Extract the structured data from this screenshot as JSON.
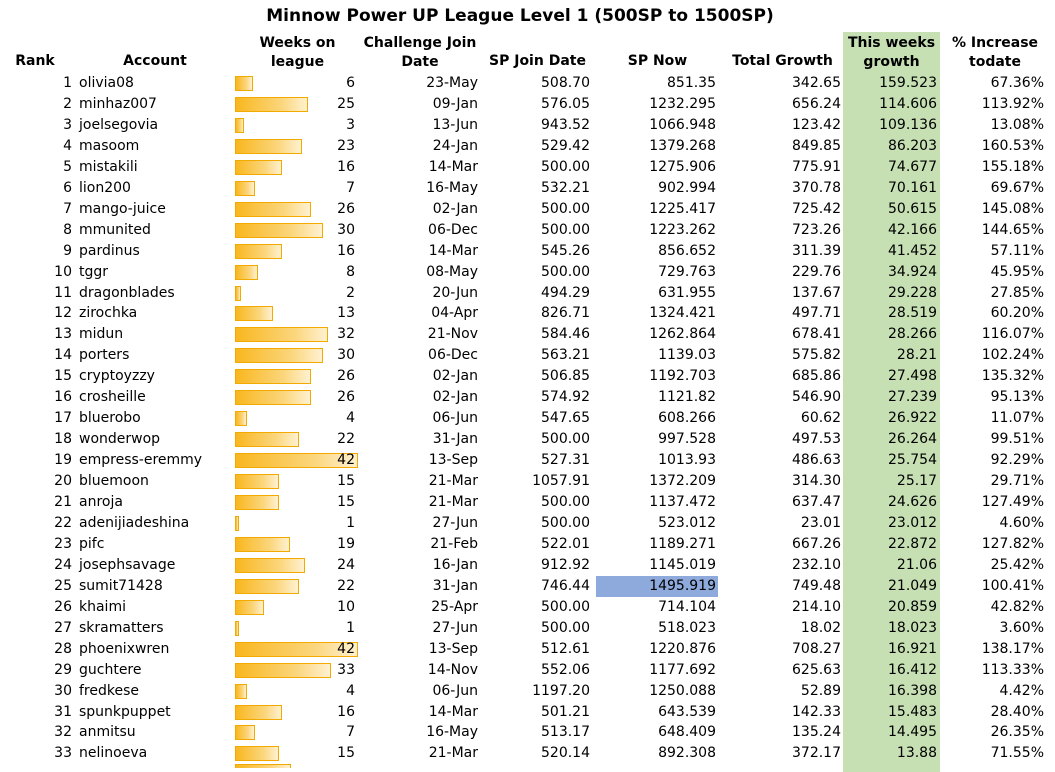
{
  "title": "Minnow Power UP League Level 1 (500SP to 1500SP)",
  "headers": {
    "rank": "Rank",
    "account": "Account",
    "weeks_l1": "Weeks on",
    "weeks_l2": "league",
    "join_l1": "Challenge Join",
    "join_l2": "Date",
    "sp_join": "SP Join Date",
    "sp_now": "SP Now",
    "total_growth": "Total Growth",
    "week_l1": "This weeks",
    "week_l2": "growth",
    "pct_l1": "% Increase",
    "pct_l2": "todate"
  },
  "colors": {
    "bar": "#f9b71f",
    "week_column": "#c6e0b4",
    "highlight": "#8ea9db"
  },
  "rows": [
    {
      "rank": "1",
      "account": "olivia08",
      "weeks": "6",
      "join_date": "23-May",
      "sp_join": "508.70",
      "sp_now": "851.35",
      "total_growth": "342.65",
      "week_growth": "159.523",
      "pct": "67.36%"
    },
    {
      "rank": "2",
      "account": "minhaz007",
      "weeks": "25",
      "join_date": "09-Jan",
      "sp_join": "576.05",
      "sp_now": "1232.295",
      "total_growth": "656.24",
      "week_growth": "114.606",
      "pct": "113.92%"
    },
    {
      "rank": "3",
      "account": "joelsegovia",
      "weeks": "3",
      "join_date": "13-Jun",
      "sp_join": "943.52",
      "sp_now": "1066.948",
      "total_growth": "123.42",
      "week_growth": "109.136",
      "pct": "13.08%"
    },
    {
      "rank": "4",
      "account": "masoom",
      "weeks": "23",
      "join_date": "24-Jan",
      "sp_join": "529.42",
      "sp_now": "1379.268",
      "total_growth": "849.85",
      "week_growth": "86.203",
      "pct": "160.53%"
    },
    {
      "rank": "5",
      "account": "mistakili",
      "weeks": "16",
      "join_date": "14-Mar",
      "sp_join": "500.00",
      "sp_now": "1275.906",
      "total_growth": "775.91",
      "week_growth": "74.677",
      "pct": "155.18%"
    },
    {
      "rank": "6",
      "account": "lion200",
      "weeks": "7",
      "join_date": "16-May",
      "sp_join": "532.21",
      "sp_now": "902.994",
      "total_growth": "370.78",
      "week_growth": "70.161",
      "pct": "69.67%"
    },
    {
      "rank": "7",
      "account": "mango-juice",
      "weeks": "26",
      "join_date": "02-Jan",
      "sp_join": "500.00",
      "sp_now": "1225.417",
      "total_growth": "725.42",
      "week_growth": "50.615",
      "pct": "145.08%"
    },
    {
      "rank": "8",
      "account": "mmunited",
      "weeks": "30",
      "join_date": "06-Dec",
      "sp_join": "500.00",
      "sp_now": "1223.262",
      "total_growth": "723.26",
      "week_growth": "42.166",
      "pct": "144.65%"
    },
    {
      "rank": "9",
      "account": "pardinus",
      "weeks": "16",
      "join_date": "14-Mar",
      "sp_join": "545.26",
      "sp_now": "856.652",
      "total_growth": "311.39",
      "week_growth": "41.452",
      "pct": "57.11%"
    },
    {
      "rank": "10",
      "account": "tggr",
      "weeks": "8",
      "join_date": "08-May",
      "sp_join": "500.00",
      "sp_now": "729.763",
      "total_growth": "229.76",
      "week_growth": "34.924",
      "pct": "45.95%"
    },
    {
      "rank": "11",
      "account": "dragonblades",
      "weeks": "2",
      "join_date": "20-Jun",
      "sp_join": "494.29",
      "sp_now": "631.955",
      "total_growth": "137.67",
      "week_growth": "29.228",
      "pct": "27.85%"
    },
    {
      "rank": "12",
      "account": "zirochka",
      "weeks": "13",
      "join_date": "04-Apr",
      "sp_join": "826.71",
      "sp_now": "1324.421",
      "total_growth": "497.71",
      "week_growth": "28.519",
      "pct": "60.20%"
    },
    {
      "rank": "13",
      "account": "midun",
      "weeks": "32",
      "join_date": "21-Nov",
      "sp_join": "584.46",
      "sp_now": "1262.864",
      "total_growth": "678.41",
      "week_growth": "28.266",
      "pct": "116.07%"
    },
    {
      "rank": "14",
      "account": "porters",
      "weeks": "30",
      "join_date": "06-Dec",
      "sp_join": "563.21",
      "sp_now": "1139.03",
      "total_growth": "575.82",
      "week_growth": "28.21",
      "pct": "102.24%"
    },
    {
      "rank": "15",
      "account": "cryptoyzzy",
      "weeks": "26",
      "join_date": "02-Jan",
      "sp_join": "506.85",
      "sp_now": "1192.703",
      "total_growth": "685.86",
      "week_growth": "27.498",
      "pct": "135.32%"
    },
    {
      "rank": "16",
      "account": "crosheille",
      "weeks": "26",
      "join_date": "02-Jan",
      "sp_join": "574.92",
      "sp_now": "1121.82",
      "total_growth": "546.90",
      "week_growth": "27.239",
      "pct": "95.13%"
    },
    {
      "rank": "17",
      "account": "bluerobo",
      "weeks": "4",
      "join_date": "06-Jun",
      "sp_join": "547.65",
      "sp_now": "608.266",
      "total_growth": "60.62",
      "week_growth": "26.922",
      "pct": "11.07%"
    },
    {
      "rank": "18",
      "account": "wonderwop",
      "weeks": "22",
      "join_date": "31-Jan",
      "sp_join": "500.00",
      "sp_now": "997.528",
      "total_growth": "497.53",
      "week_growth": "26.264",
      "pct": "99.51%"
    },
    {
      "rank": "19",
      "account": "empress-eremmy",
      "weeks": "42",
      "join_date": "13-Sep",
      "sp_join": "527.31",
      "sp_now": "1013.93",
      "total_growth": "486.63",
      "week_growth": "25.754",
      "pct": "92.29%"
    },
    {
      "rank": "20",
      "account": "bluemoon",
      "weeks": "15",
      "join_date": "21-Mar",
      "sp_join": "1057.91",
      "sp_now": "1372.209",
      "total_growth": "314.30",
      "week_growth": "25.17",
      "pct": "29.71%"
    },
    {
      "rank": "21",
      "account": "anroja",
      "weeks": "15",
      "join_date": "21-Mar",
      "sp_join": "500.00",
      "sp_now": "1137.472",
      "total_growth": "637.47",
      "week_growth": "24.626",
      "pct": "127.49%"
    },
    {
      "rank": "22",
      "account": "adenijiadeshina",
      "weeks": "1",
      "join_date": "27-Jun",
      "sp_join": "500.00",
      "sp_now": "523.012",
      "total_growth": "23.01",
      "week_growth": "23.012",
      "pct": "4.60%"
    },
    {
      "rank": "23",
      "account": "pifc",
      "weeks": "19",
      "join_date": "21-Feb",
      "sp_join": "522.01",
      "sp_now": "1189.271",
      "total_growth": "667.26",
      "week_growth": "22.872",
      "pct": "127.82%"
    },
    {
      "rank": "24",
      "account": "josephsavage",
      "weeks": "24",
      "join_date": "16-Jan",
      "sp_join": "912.92",
      "sp_now": "1145.019",
      "total_growth": "232.10",
      "week_growth": "21.06",
      "pct": "25.42%"
    },
    {
      "rank": "25",
      "account": "sumit71428",
      "weeks": "22",
      "join_date": "31-Jan",
      "sp_join": "746.44",
      "sp_now": "1495.919",
      "total_growth": "749.48",
      "week_growth": "21.049",
      "pct": "100.41%",
      "highlight_sp_now": true
    },
    {
      "rank": "26",
      "account": "khaimi",
      "weeks": "10",
      "join_date": "25-Apr",
      "sp_join": "500.00",
      "sp_now": "714.104",
      "total_growth": "214.10",
      "week_growth": "20.859",
      "pct": "42.82%"
    },
    {
      "rank": "27",
      "account": "skramatters",
      "weeks": "1",
      "join_date": "27-Jun",
      "sp_join": "500.00",
      "sp_now": "518.023",
      "total_growth": "18.02",
      "week_growth": "18.023",
      "pct": "3.60%"
    },
    {
      "rank": "28",
      "account": "phoenixwren",
      "weeks": "42",
      "join_date": "13-Sep",
      "sp_join": "512.61",
      "sp_now": "1220.876",
      "total_growth": "708.27",
      "week_growth": "16.921",
      "pct": "138.17%"
    },
    {
      "rank": "29",
      "account": "guchtere",
      "weeks": "33",
      "join_date": "14-Nov",
      "sp_join": "552.06",
      "sp_now": "1177.692",
      "total_growth": "625.63",
      "week_growth": "16.412",
      "pct": "113.33%"
    },
    {
      "rank": "30",
      "account": "fredkese",
      "weeks": "4",
      "join_date": "06-Jun",
      "sp_join": "1197.20",
      "sp_now": "1250.088",
      "total_growth": "52.89",
      "week_growth": "16.398",
      "pct": "4.42%"
    },
    {
      "rank": "31",
      "account": "spunkpuppet",
      "weeks": "16",
      "join_date": "14-Mar",
      "sp_join": "501.21",
      "sp_now": "643.539",
      "total_growth": "142.33",
      "week_growth": "15.483",
      "pct": "28.40%"
    },
    {
      "rank": "32",
      "account": "anmitsu",
      "weeks": "7",
      "join_date": "16-May",
      "sp_join": "513.17",
      "sp_now": "648.409",
      "total_growth": "135.24",
      "week_growth": "14.495",
      "pct": "26.35%"
    },
    {
      "rank": "33",
      "account": "nelinoeva",
      "weeks": "15",
      "join_date": "21-Mar",
      "sp_join": "520.14",
      "sp_now": "892.308",
      "total_growth": "372.17",
      "week_growth": "13.88",
      "pct": "71.55%"
    }
  ]
}
